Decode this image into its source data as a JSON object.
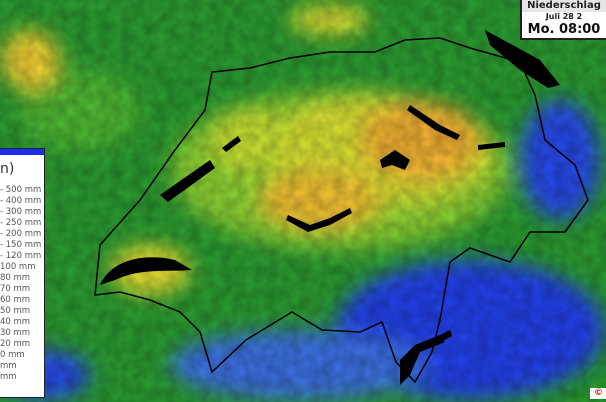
{
  "header": {
    "title": "Niederschlag",
    "date": "Juli 28 2",
    "time": "Mo. 08:00"
  },
  "legend": {
    "title": "n)",
    "items": [
      "- 500 mm",
      "- 400 mm",
      "- 300 mm",
      "- 250 mm",
      "- 200 mm",
      "- 150 mm",
      "- 120 mm",
      "100 mm",
      "80 mm",
      "70 mm",
      "60 mm",
      "50 mm",
      "40 mm",
      "30 mm",
      "20 mm",
      "0 mm",
      "mm",
      "mm"
    ],
    "header_color": "#1a2cf0"
  },
  "colors": {
    "low": "#1c3cf0",
    "light": "#3a78d8",
    "green": "#2a9a30",
    "lightgreen": "#7ccc30",
    "yellow": "#f0e030",
    "orange": "#f09030",
    "lakes": "#000000"
  },
  "copyright": "© M"
}
